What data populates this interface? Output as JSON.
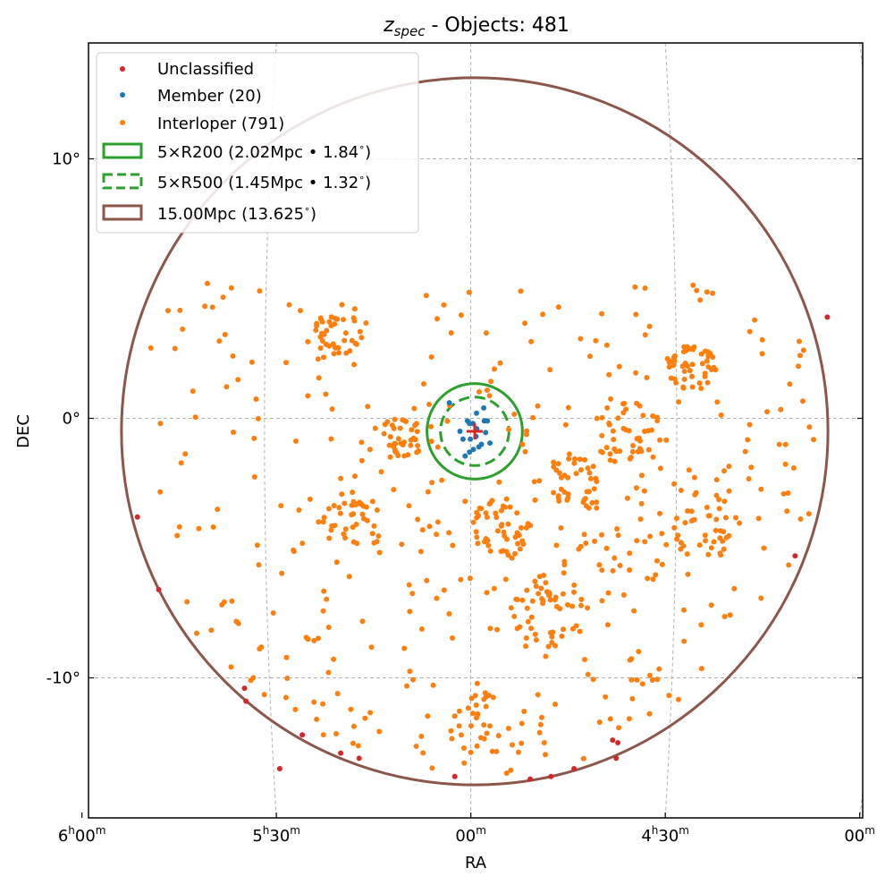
{
  "chart_data": {
    "type": "scatter",
    "title_main": "z",
    "title_sub": "spec",
    "title_rest": " - Objects: 481",
    "xlabel": "RA",
    "ylabel": "DEC",
    "grid": true,
    "legend_placement": "top-left",
    "x_ticks": [
      {
        "hour": "6",
        "min": "00",
        "ra_deg": 90.0
      },
      {
        "hour": "5",
        "min": "30",
        "ra_deg": 82.5
      },
      {
        "hour": "",
        "min": "00",
        "ra_deg": 75.0
      },
      {
        "hour": "4",
        "min": "30",
        "ra_deg": 67.5
      },
      {
        "hour": "",
        "min": "00",
        "ra_deg": 60.0
      }
    ],
    "y_ticks": [
      {
        "label": "10°",
        "dec": 10
      },
      {
        "label": "0°",
        "dec": 0
      },
      {
        "label": "-10°",
        "dec": -10
      }
    ],
    "center": {
      "ra": 74.85,
      "dec": -0.5
    },
    "legend": {
      "unclassified": "Unclassified",
      "member": "Member (20)",
      "interloper": "Interloper (791)",
      "r200": "5×R200 (2.02Mpc • 1.84$^\\circ$)",
      "r200_text": "5×R200 (2.02Mpc • 1.84",
      "r500_text": "5×R500 (1.45Mpc • 1.32",
      "mpc_text": "15.00Mpc (13.625",
      "deg_sup": "∘",
      "close_paren": ")"
    },
    "circles": [
      {
        "name": "5xR200",
        "radius_deg": 1.84,
        "style": "solid",
        "color": "#2ca02c"
      },
      {
        "name": "5xR500",
        "radius_deg": 1.32,
        "style": "dashed",
        "color": "#2ca02c"
      },
      {
        "name": "15Mpc",
        "radius_deg": 13.625,
        "style": "solid",
        "color": "#8c564b"
      }
    ],
    "series": [
      {
        "name": "Unclassified",
        "color": "#d62728",
        "points": [
          [
            87.86,
            -3.8
          ],
          [
            87.04,
            -6.6
          ],
          [
            83.73,
            -10.4
          ],
          [
            83.67,
            -10.9
          ],
          [
            81.5,
            -12.2
          ],
          [
            80.02,
            -12.9
          ],
          [
            79.31,
            -13.1
          ],
          [
            82.37,
            -13.5
          ],
          [
            75.62,
            -13.8
          ],
          [
            72.71,
            -13.9
          ],
          [
            71.91,
            -13.8
          ],
          [
            71.02,
            -13.5
          ],
          [
            69.53,
            -12.4
          ],
          [
            69.33,
            -12.5
          ],
          [
            69.39,
            -13.1
          ],
          [
            62.49,
            -5.3
          ],
          [
            61.25,
            3.9
          ]
        ]
      },
      {
        "name": "Member (20)",
        "color": "#1f77b4",
        "points": [
          [
            74.92,
            -0.2
          ],
          [
            74.77,
            -0.4
          ],
          [
            74.8,
            -0.7
          ],
          [
            74.59,
            -1.0
          ],
          [
            74.69,
            -1.1
          ],
          [
            74.48,
            -0.1
          ],
          [
            74.43,
            -0.55
          ],
          [
            75.42,
            -0.5
          ],
          [
            75.02,
            -0.8
          ],
          [
            75.05,
            -0.2
          ],
          [
            74.78,
            0.2
          ],
          [
            75.3,
            -0.8
          ],
          [
            75.05,
            -1.3
          ],
          [
            74.36,
            -0.1
          ],
          [
            75.13,
            -0.1
          ],
          [
            75.83,
            0.6
          ],
          [
            74.5,
            0.4
          ],
          [
            74.26,
            -0.95
          ],
          [
            75.22,
            -1.45
          ],
          [
            74.9,
            -1.2
          ]
        ]
      },
      {
        "name": "Interloper (791)",
        "color": "#ff7f0e",
        "generator": {
          "seed": 7,
          "count": 791,
          "dec_min": -14,
          "dec_max": 5.2,
          "radius_deg": 13.3
        }
      }
    ]
  }
}
